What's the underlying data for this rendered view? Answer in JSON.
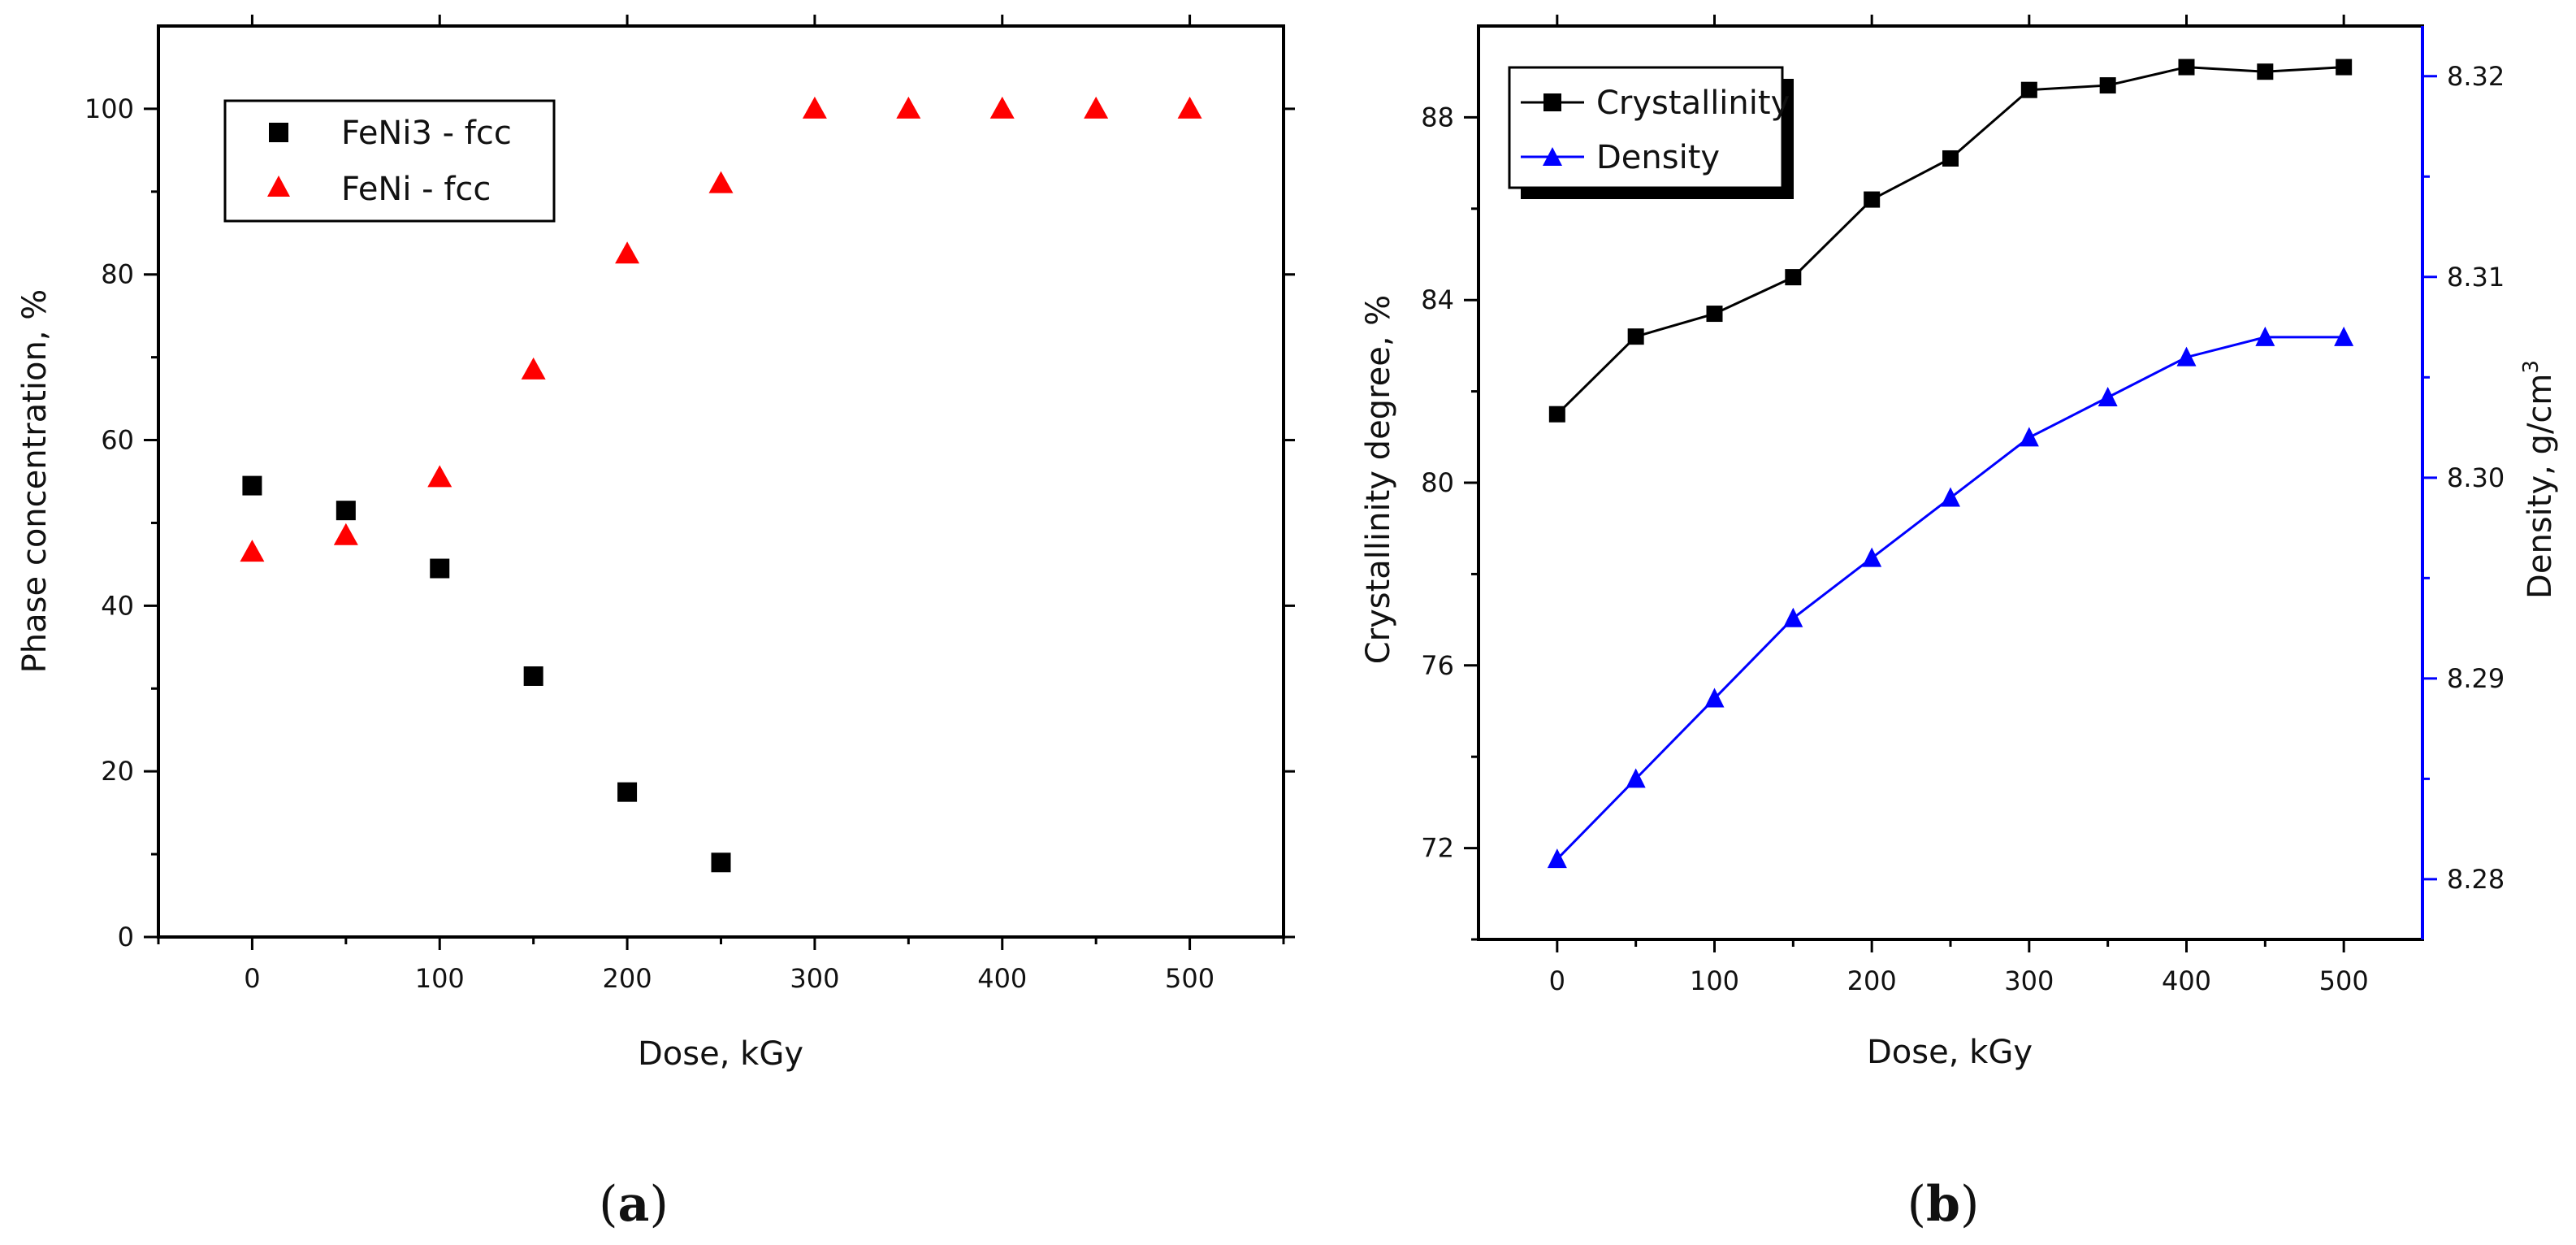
{
  "chart_data": [
    {
      "panel": "a",
      "panel_label": "(a)",
      "type": "scatter",
      "xlabel": "Dose, kGy",
      "ylabel": "Phase concentration, %",
      "xlim": [
        -50,
        550
      ],
      "ylim": [
        0,
        110
      ],
      "xticks": [
        0,
        100,
        200,
        300,
        400,
        500
      ],
      "yticks": [
        0,
        20,
        40,
        60,
        80,
        100
      ],
      "legend_position": "top-left",
      "series": [
        {
          "name": "FeNi3 - fcc",
          "marker": "square",
          "color": "#000000",
          "x": [
            0,
            50,
            100,
            150,
            200,
            250
          ],
          "y": [
            54.5,
            51.5,
            44.5,
            31.5,
            17.5,
            9
          ]
        },
        {
          "name": "FeNi - fcc",
          "marker": "triangle",
          "color": "#ff0000",
          "x": [
            0,
            50,
            100,
            150,
            200,
            250,
            300,
            350,
            400,
            450,
            500
          ],
          "y": [
            46.5,
            48.5,
            55.5,
            68.5,
            82.5,
            91,
            100,
            100,
            100,
            100,
            100
          ]
        }
      ]
    },
    {
      "panel": "b",
      "panel_label": "(b)",
      "type": "line",
      "xlabel": "Dose, kGy",
      "ylabel": "Crystallinity degree, %",
      "y2label": "Density, g/cm",
      "y2label_sup": "3",
      "xlim": [
        -50,
        550
      ],
      "ylim": [
        70,
        90
      ],
      "y2lim": [
        8.277,
        8.3225
      ],
      "xticks": [
        0,
        100,
        200,
        300,
        400,
        500
      ],
      "yticks": [
        72,
        76,
        80,
        84,
        88
      ],
      "y2ticks": [
        8.28,
        8.29,
        8.3,
        8.31,
        8.32
      ],
      "legend_position": "top-left",
      "series": [
        {
          "name": "Crystallinity",
          "axis": "left",
          "marker": "square",
          "color": "#000000",
          "x": [
            0,
            50,
            100,
            150,
            200,
            250,
            300,
            350,
            400,
            450,
            500
          ],
          "y": [
            81.5,
            83.2,
            83.7,
            84.5,
            86.2,
            87.1,
            88.6,
            88.7,
            89.1,
            89,
            89.1
          ]
        },
        {
          "name": "Density",
          "axis": "right",
          "marker": "triangle",
          "color": "#0000ff",
          "x": [
            0,
            50,
            100,
            150,
            200,
            250,
            300,
            350,
            400,
            450,
            500
          ],
          "y": [
            8.281,
            8.285,
            8.289,
            8.293,
            8.296,
            8.299,
            8.302,
            8.304,
            8.306,
            8.307,
            8.307
          ]
        }
      ]
    }
  ]
}
